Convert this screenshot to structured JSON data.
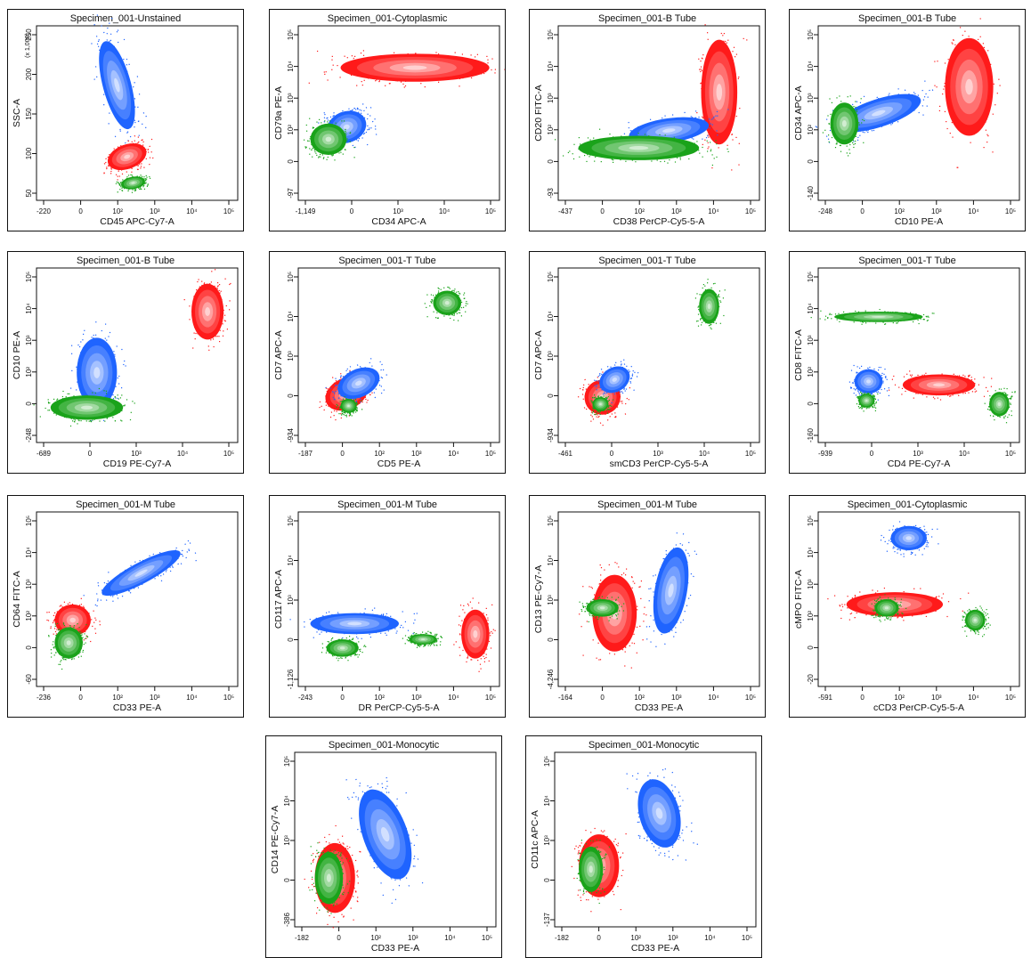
{
  "colors": {
    "blue": "#1f64ff",
    "red": "#ff1a1a",
    "green": "#1aa31a"
  },
  "chart_data": [
    {
      "type": "scatter",
      "title": "Specimen_001-Unstained",
      "xlabel": "CD45 APC-Cy7-A",
      "ylabel": "SSC-A",
      "y_multiplier": "(x 1,000)",
      "x_ticks": [
        "-220",
        "0",
        "10²",
        "10³",
        "10⁴",
        "10⁵"
      ],
      "y_ticks": [
        "50",
        "100",
        "150",
        "200",
        "250"
      ],
      "populations": [
        {
          "color": "blue",
          "cx": 0.4,
          "cy": 0.66,
          "rx": 0.07,
          "ry": 0.26,
          "rot": -15
        },
        {
          "color": "red",
          "cx": 0.45,
          "cy": 0.25,
          "rx": 0.1,
          "ry": 0.07,
          "rot": -20
        },
        {
          "color": "green",
          "cx": 0.48,
          "cy": 0.1,
          "rx": 0.06,
          "ry": 0.035,
          "rot": -10
        }
      ]
    },
    {
      "type": "scatter",
      "title": "Specimen_001-Cytoplasmic",
      "xlabel": "CD34 APC-A",
      "ylabel": "CD79a PE-A",
      "x_ticks": [
        "-1,149",
        "0",
        "10³",
        "10⁴",
        "10⁵"
      ],
      "y_ticks": [
        "-97",
        "0",
        "10²",
        "10³",
        "10⁴",
        "10⁵"
      ],
      "populations": [
        {
          "color": "red",
          "cx": 0.58,
          "cy": 0.76,
          "rx": 0.37,
          "ry": 0.08,
          "rot": 0
        },
        {
          "color": "blue",
          "cx": 0.24,
          "cy": 0.42,
          "rx": 0.1,
          "ry": 0.09,
          "rot": -20
        },
        {
          "color": "green",
          "cx": 0.15,
          "cy": 0.35,
          "rx": 0.09,
          "ry": 0.09,
          "rot": 0
        }
      ]
    },
    {
      "type": "scatter",
      "title": "Specimen_001-B Tube",
      "xlabel": "CD38 PerCP-Cy5-5-A",
      "ylabel": "CD20 FITC-A",
      "x_ticks": [
        "-437",
        "0",
        "10²",
        "10³",
        "10⁴",
        "10⁵"
      ],
      "y_ticks": [
        "-93",
        "0",
        "10²",
        "10³",
        "10⁴",
        "10⁵"
      ],
      "populations": [
        {
          "color": "red",
          "cx": 0.8,
          "cy": 0.62,
          "rx": 0.09,
          "ry": 0.3,
          "rot": 0
        },
        {
          "color": "blue",
          "cx": 0.55,
          "cy": 0.4,
          "rx": 0.2,
          "ry": 0.07,
          "rot": -8
        },
        {
          "color": "green",
          "cx": 0.4,
          "cy": 0.3,
          "rx": 0.3,
          "ry": 0.07,
          "rot": 0
        }
      ]
    },
    {
      "type": "scatter",
      "title": "Specimen_001-B Tube",
      "xlabel": "CD10 PE-A",
      "ylabel": "CD34 APC-A",
      "x_ticks": [
        "-248",
        "0",
        "10²",
        "10³",
        "10⁴",
        "10⁵"
      ],
      "y_ticks": [
        "-140",
        "0",
        "10²",
        "10³",
        "10⁴",
        "10⁵"
      ],
      "populations": [
        {
          "color": "red",
          "cx": 0.75,
          "cy": 0.65,
          "rx": 0.12,
          "ry": 0.28,
          "rot": 0
        },
        {
          "color": "blue",
          "cx": 0.3,
          "cy": 0.5,
          "rx": 0.22,
          "ry": 0.08,
          "rot": -18
        },
        {
          "color": "green",
          "cx": 0.13,
          "cy": 0.44,
          "rx": 0.07,
          "ry": 0.12,
          "rot": 0
        }
      ]
    },
    {
      "type": "scatter",
      "title": "Specimen_001-B Tube",
      "xlabel": "CD19 PE-Cy7-A",
      "ylabel": "CD10 PE-A",
      "x_ticks": [
        "-689",
        "0",
        "10³",
        "10⁴",
        "10⁵"
      ],
      "y_ticks": [
        "-248",
        "0",
        "10²",
        "10³",
        "10⁴",
        "10⁵"
      ],
      "populations": [
        {
          "color": "red",
          "cx": 0.85,
          "cy": 0.75,
          "rx": 0.08,
          "ry": 0.16,
          "rot": 0
        },
        {
          "color": "blue",
          "cx": 0.3,
          "cy": 0.4,
          "rx": 0.1,
          "ry": 0.2,
          "rot": 0
        },
        {
          "color": "green",
          "cx": 0.25,
          "cy": 0.2,
          "rx": 0.18,
          "ry": 0.07,
          "rot": 0
        }
      ]
    },
    {
      "type": "scatter",
      "title": "Specimen_001-T Tube",
      "xlabel": "CD5 PE-A",
      "ylabel": "CD7 APC-A",
      "x_ticks": [
        "-187",
        "0",
        "10²",
        "10³",
        "10⁴",
        "10⁵"
      ],
      "y_ticks": [
        "-934",
        "0",
        "10³",
        "10⁴",
        "10⁵"
      ],
      "populations": [
        {
          "color": "green",
          "cx": 0.74,
          "cy": 0.8,
          "rx": 0.07,
          "ry": 0.07,
          "rot": 0
        },
        {
          "color": "red",
          "cx": 0.24,
          "cy": 0.28,
          "rx": 0.11,
          "ry": 0.09,
          "rot": -25
        },
        {
          "color": "blue",
          "cx": 0.3,
          "cy": 0.34,
          "rx": 0.11,
          "ry": 0.08,
          "rot": -25
        },
        {
          "color": "green",
          "cx": 0.25,
          "cy": 0.21,
          "rx": 0.04,
          "ry": 0.04,
          "rot": 0
        }
      ]
    },
    {
      "type": "scatter",
      "title": "Specimen_001-T Tube",
      "xlabel": "smCD3 PerCP-Cy5-5-A",
      "ylabel": "CD7 APC-A",
      "x_ticks": [
        "-461",
        "0",
        "10³",
        "10⁴",
        "10⁵"
      ],
      "y_ticks": [
        "-934",
        "0",
        "10³",
        "10⁴",
        "10⁵"
      ],
      "populations": [
        {
          "color": "green",
          "cx": 0.75,
          "cy": 0.78,
          "rx": 0.05,
          "ry": 0.1,
          "rot": 0
        },
        {
          "color": "red",
          "cx": 0.22,
          "cy": 0.26,
          "rx": 0.09,
          "ry": 0.1,
          "rot": -20
        },
        {
          "color": "blue",
          "cx": 0.28,
          "cy": 0.36,
          "rx": 0.08,
          "ry": 0.07,
          "rot": -30
        },
        {
          "color": "green",
          "cx": 0.21,
          "cy": 0.22,
          "rx": 0.04,
          "ry": 0.04,
          "rot": 0
        }
      ]
    },
    {
      "type": "scatter",
      "title": "Specimen_001-T Tube",
      "xlabel": "CD4 PE-Cy7-A",
      "ylabel": "CD8 FITC-A",
      "x_ticks": [
        "-939",
        "0",
        "10³",
        "10⁴",
        "10⁵"
      ],
      "y_ticks": [
        "-160",
        "0",
        "10²",
        "10³",
        "10⁴",
        "10⁵"
      ],
      "populations": [
        {
          "color": "green",
          "cx": 0.3,
          "cy": 0.72,
          "rx": 0.22,
          "ry": 0.03,
          "rot": 0
        },
        {
          "color": "red",
          "cx": 0.6,
          "cy": 0.33,
          "rx": 0.18,
          "ry": 0.06,
          "rot": 0
        },
        {
          "color": "blue",
          "cx": 0.25,
          "cy": 0.35,
          "rx": 0.07,
          "ry": 0.07,
          "rot": 0
        },
        {
          "color": "green",
          "cx": 0.24,
          "cy": 0.24,
          "rx": 0.04,
          "ry": 0.04,
          "rot": 0
        },
        {
          "color": "green",
          "cx": 0.9,
          "cy": 0.22,
          "rx": 0.05,
          "ry": 0.07,
          "rot": 0
        }
      ]
    },
    {
      "type": "scatter",
      "title": "Specimen_001-M Tube",
      "xlabel": "CD33 PE-A",
      "ylabel": "CD64 FITC-A",
      "x_ticks": [
        "-236",
        "0",
        "10²",
        "10³",
        "10⁴",
        "10⁵"
      ],
      "y_ticks": [
        "-60",
        "0",
        "10²",
        "10³",
        "10⁴",
        "10⁵"
      ],
      "populations": [
        {
          "color": "blue",
          "cx": 0.52,
          "cy": 0.65,
          "rx": 0.22,
          "ry": 0.06,
          "rot": -28
        },
        {
          "color": "red",
          "cx": 0.18,
          "cy": 0.38,
          "rx": 0.09,
          "ry": 0.09,
          "rot": 0
        },
        {
          "color": "green",
          "cx": 0.16,
          "cy": 0.25,
          "rx": 0.07,
          "ry": 0.09,
          "rot": 0
        }
      ]
    },
    {
      "type": "scatter",
      "title": "Specimen_001-M Tube",
      "xlabel": "DR PerCP-Cy5-5-A",
      "ylabel": "CD117 APC-A",
      "x_ticks": [
        "-243",
        "0",
        "10²",
        "10³",
        "10⁴",
        "10⁵"
      ],
      "y_ticks": [
        "-1,126",
        "0",
        "10³",
        "10⁴",
        "10⁵"
      ],
      "populations": [
        {
          "color": "red",
          "cx": 0.88,
          "cy": 0.3,
          "rx": 0.07,
          "ry": 0.14,
          "rot": 0
        },
        {
          "color": "blue",
          "cx": 0.28,
          "cy": 0.36,
          "rx": 0.22,
          "ry": 0.06,
          "rot": 0
        },
        {
          "color": "green",
          "cx": 0.22,
          "cy": 0.22,
          "rx": 0.08,
          "ry": 0.05,
          "rot": 0
        },
        {
          "color": "green",
          "cx": 0.62,
          "cy": 0.27,
          "rx": 0.07,
          "ry": 0.03,
          "rot": 0
        }
      ]
    },
    {
      "type": "scatter",
      "title": "Specimen_001-M Tube",
      "xlabel": "CD33 PE-A",
      "ylabel": "CD13 PE-Cy7-A",
      "x_ticks": [
        "-164",
        "0",
        "10²",
        "10³",
        "10⁴",
        "10⁵"
      ],
      "y_ticks": [
        "-4,246",
        "0",
        "10³",
        "10⁴",
        "10⁵"
      ],
      "populations": [
        {
          "color": "red",
          "cx": 0.28,
          "cy": 0.42,
          "rx": 0.11,
          "ry": 0.22,
          "rot": 0
        },
        {
          "color": "blue",
          "cx": 0.56,
          "cy": 0.55,
          "rx": 0.08,
          "ry": 0.25,
          "rot": 10
        },
        {
          "color": "green",
          "cx": 0.22,
          "cy": 0.45,
          "rx": 0.08,
          "ry": 0.05,
          "rot": 0
        }
      ]
    },
    {
      "type": "scatter",
      "title": "Specimen_001-Cytoplasmic",
      "xlabel": "cCD3 PerCP-Cy5-5-A",
      "ylabel": "cMPO FITC-A",
      "x_ticks": [
        "-591",
        "0",
        "10²",
        "10³",
        "10⁴",
        "10⁵"
      ],
      "y_ticks": [
        "-20",
        "0",
        "10²",
        "10³",
        "10⁴",
        "10⁵"
      ],
      "populations": [
        {
          "color": "blue",
          "cx": 0.45,
          "cy": 0.85,
          "rx": 0.09,
          "ry": 0.07,
          "rot": 0
        },
        {
          "color": "red",
          "cx": 0.38,
          "cy": 0.47,
          "rx": 0.24,
          "ry": 0.07,
          "rot": 0
        },
        {
          "color": "green",
          "cx": 0.34,
          "cy": 0.45,
          "rx": 0.06,
          "ry": 0.05,
          "rot": 0
        },
        {
          "color": "green",
          "cx": 0.78,
          "cy": 0.38,
          "rx": 0.05,
          "ry": 0.06,
          "rot": 0
        }
      ]
    },
    {
      "type": "scatter",
      "title": "Specimen_001-Monocytic",
      "xlabel": "CD33 PE-A",
      "ylabel": "CD14 PE-Cy7-A",
      "x_ticks": [
        "-182",
        "0",
        "10²",
        "10³",
        "10⁴",
        "10⁵"
      ],
      "y_ticks": [
        "-386",
        "0",
        "10³",
        "10⁴",
        "10⁵"
      ],
      "populations": [
        {
          "color": "blue",
          "cx": 0.45,
          "cy": 0.53,
          "rx": 0.11,
          "ry": 0.27,
          "rot": -20
        },
        {
          "color": "red",
          "cx": 0.2,
          "cy": 0.28,
          "rx": 0.1,
          "ry": 0.2,
          "rot": 0
        },
        {
          "color": "green",
          "cx": 0.17,
          "cy": 0.28,
          "rx": 0.07,
          "ry": 0.15,
          "rot": 0
        }
      ]
    },
    {
      "type": "scatter",
      "title": "Specimen_001-Monocytic",
      "xlabel": "CD33 PE-A",
      "ylabel": "CD11c APC-A",
      "x_ticks": [
        "-182",
        "0",
        "10²",
        "10³",
        "10⁴",
        "10⁵"
      ],
      "y_ticks": [
        "-137",
        "0",
        "10³",
        "10⁴",
        "10⁵"
      ],
      "populations": [
        {
          "color": "blue",
          "cx": 0.52,
          "cy": 0.65,
          "rx": 0.1,
          "ry": 0.2,
          "rot": -15
        },
        {
          "color": "red",
          "cx": 0.22,
          "cy": 0.35,
          "rx": 0.1,
          "ry": 0.18,
          "rot": 0
        },
        {
          "color": "green",
          "cx": 0.18,
          "cy": 0.33,
          "rx": 0.06,
          "ry": 0.13,
          "rot": 0
        }
      ]
    }
  ]
}
